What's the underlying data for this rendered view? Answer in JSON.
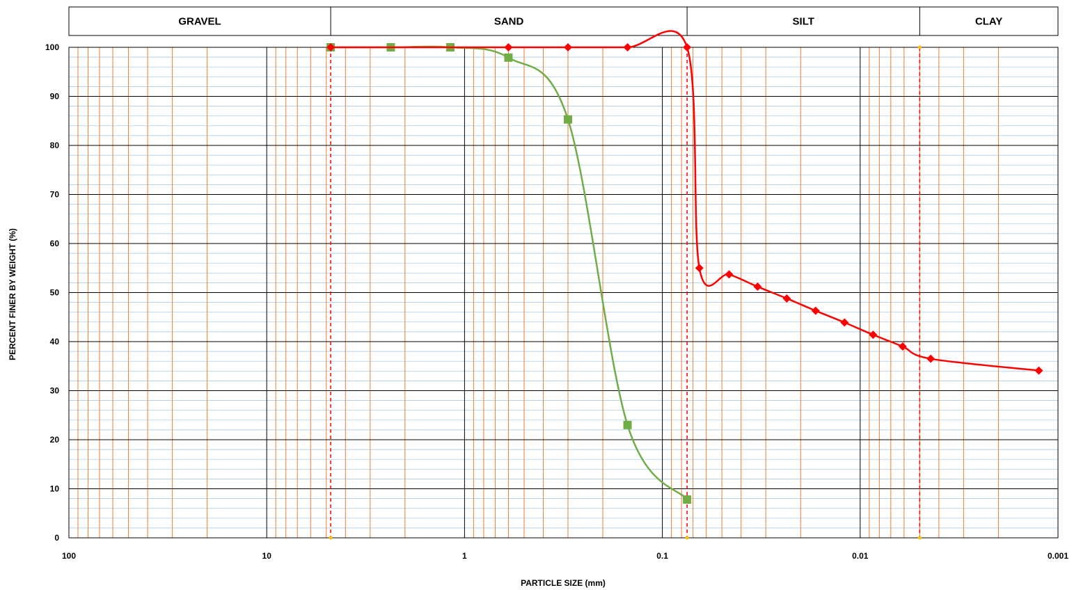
{
  "chart_data": {
    "type": "scatter",
    "xscale": "log",
    "x_reversed": true,
    "xlim": [
      100,
      0.001
    ],
    "ylim": [
      0,
      100
    ],
    "xlabel": "PARTICLE SIZE (mm)",
    "ylabel": "PERCENT FINER BY WEIGHT (%)",
    "x_ticks": [
      "100",
      "10",
      "1",
      "0.1",
      "0.01",
      "0.001"
    ],
    "y_ticks": [
      "0",
      "10",
      "20",
      "30",
      "40",
      "50",
      "60",
      "70",
      "80",
      "90",
      "100"
    ],
    "soil_bands": [
      {
        "label": "GRAVEL",
        "from": 100,
        "to": 4.75
      },
      {
        "label": "SAND",
        "from": 4.75,
        "to": 0.075
      },
      {
        "label": "SILT",
        "from": 0.075,
        "to": 0.005
      },
      {
        "label": "CLAY",
        "from": 0.005,
        "to": 0.001
      }
    ],
    "boundary_lines": [
      4.75,
      0.075,
      0.005
    ],
    "grid": true,
    "series": [
      {
        "color": "#70AD47",
        "marker": "square",
        "x": [
          4.75,
          2.36,
          1.18,
          0.6,
          0.3,
          0.15,
          0.075
        ],
        "y": [
          100,
          100,
          100,
          97.9,
          85.3,
          23.0,
          7.8
        ]
      },
      {
        "color": "#FF0000",
        "marker": "diamond",
        "x": [
          4.75,
          0.6,
          0.3,
          0.15,
          0.075,
          0.065,
          0.046,
          0.033,
          0.0235,
          0.0168,
          0.012,
          0.0086,
          0.0061,
          0.0044,
          0.00125
        ],
        "y": [
          100,
          100,
          100,
          100,
          100,
          55.0,
          53.7,
          51.2,
          48.8,
          46.3,
          43.9,
          41.4,
          39.0,
          36.5,
          34.1
        ]
      }
    ]
  }
}
